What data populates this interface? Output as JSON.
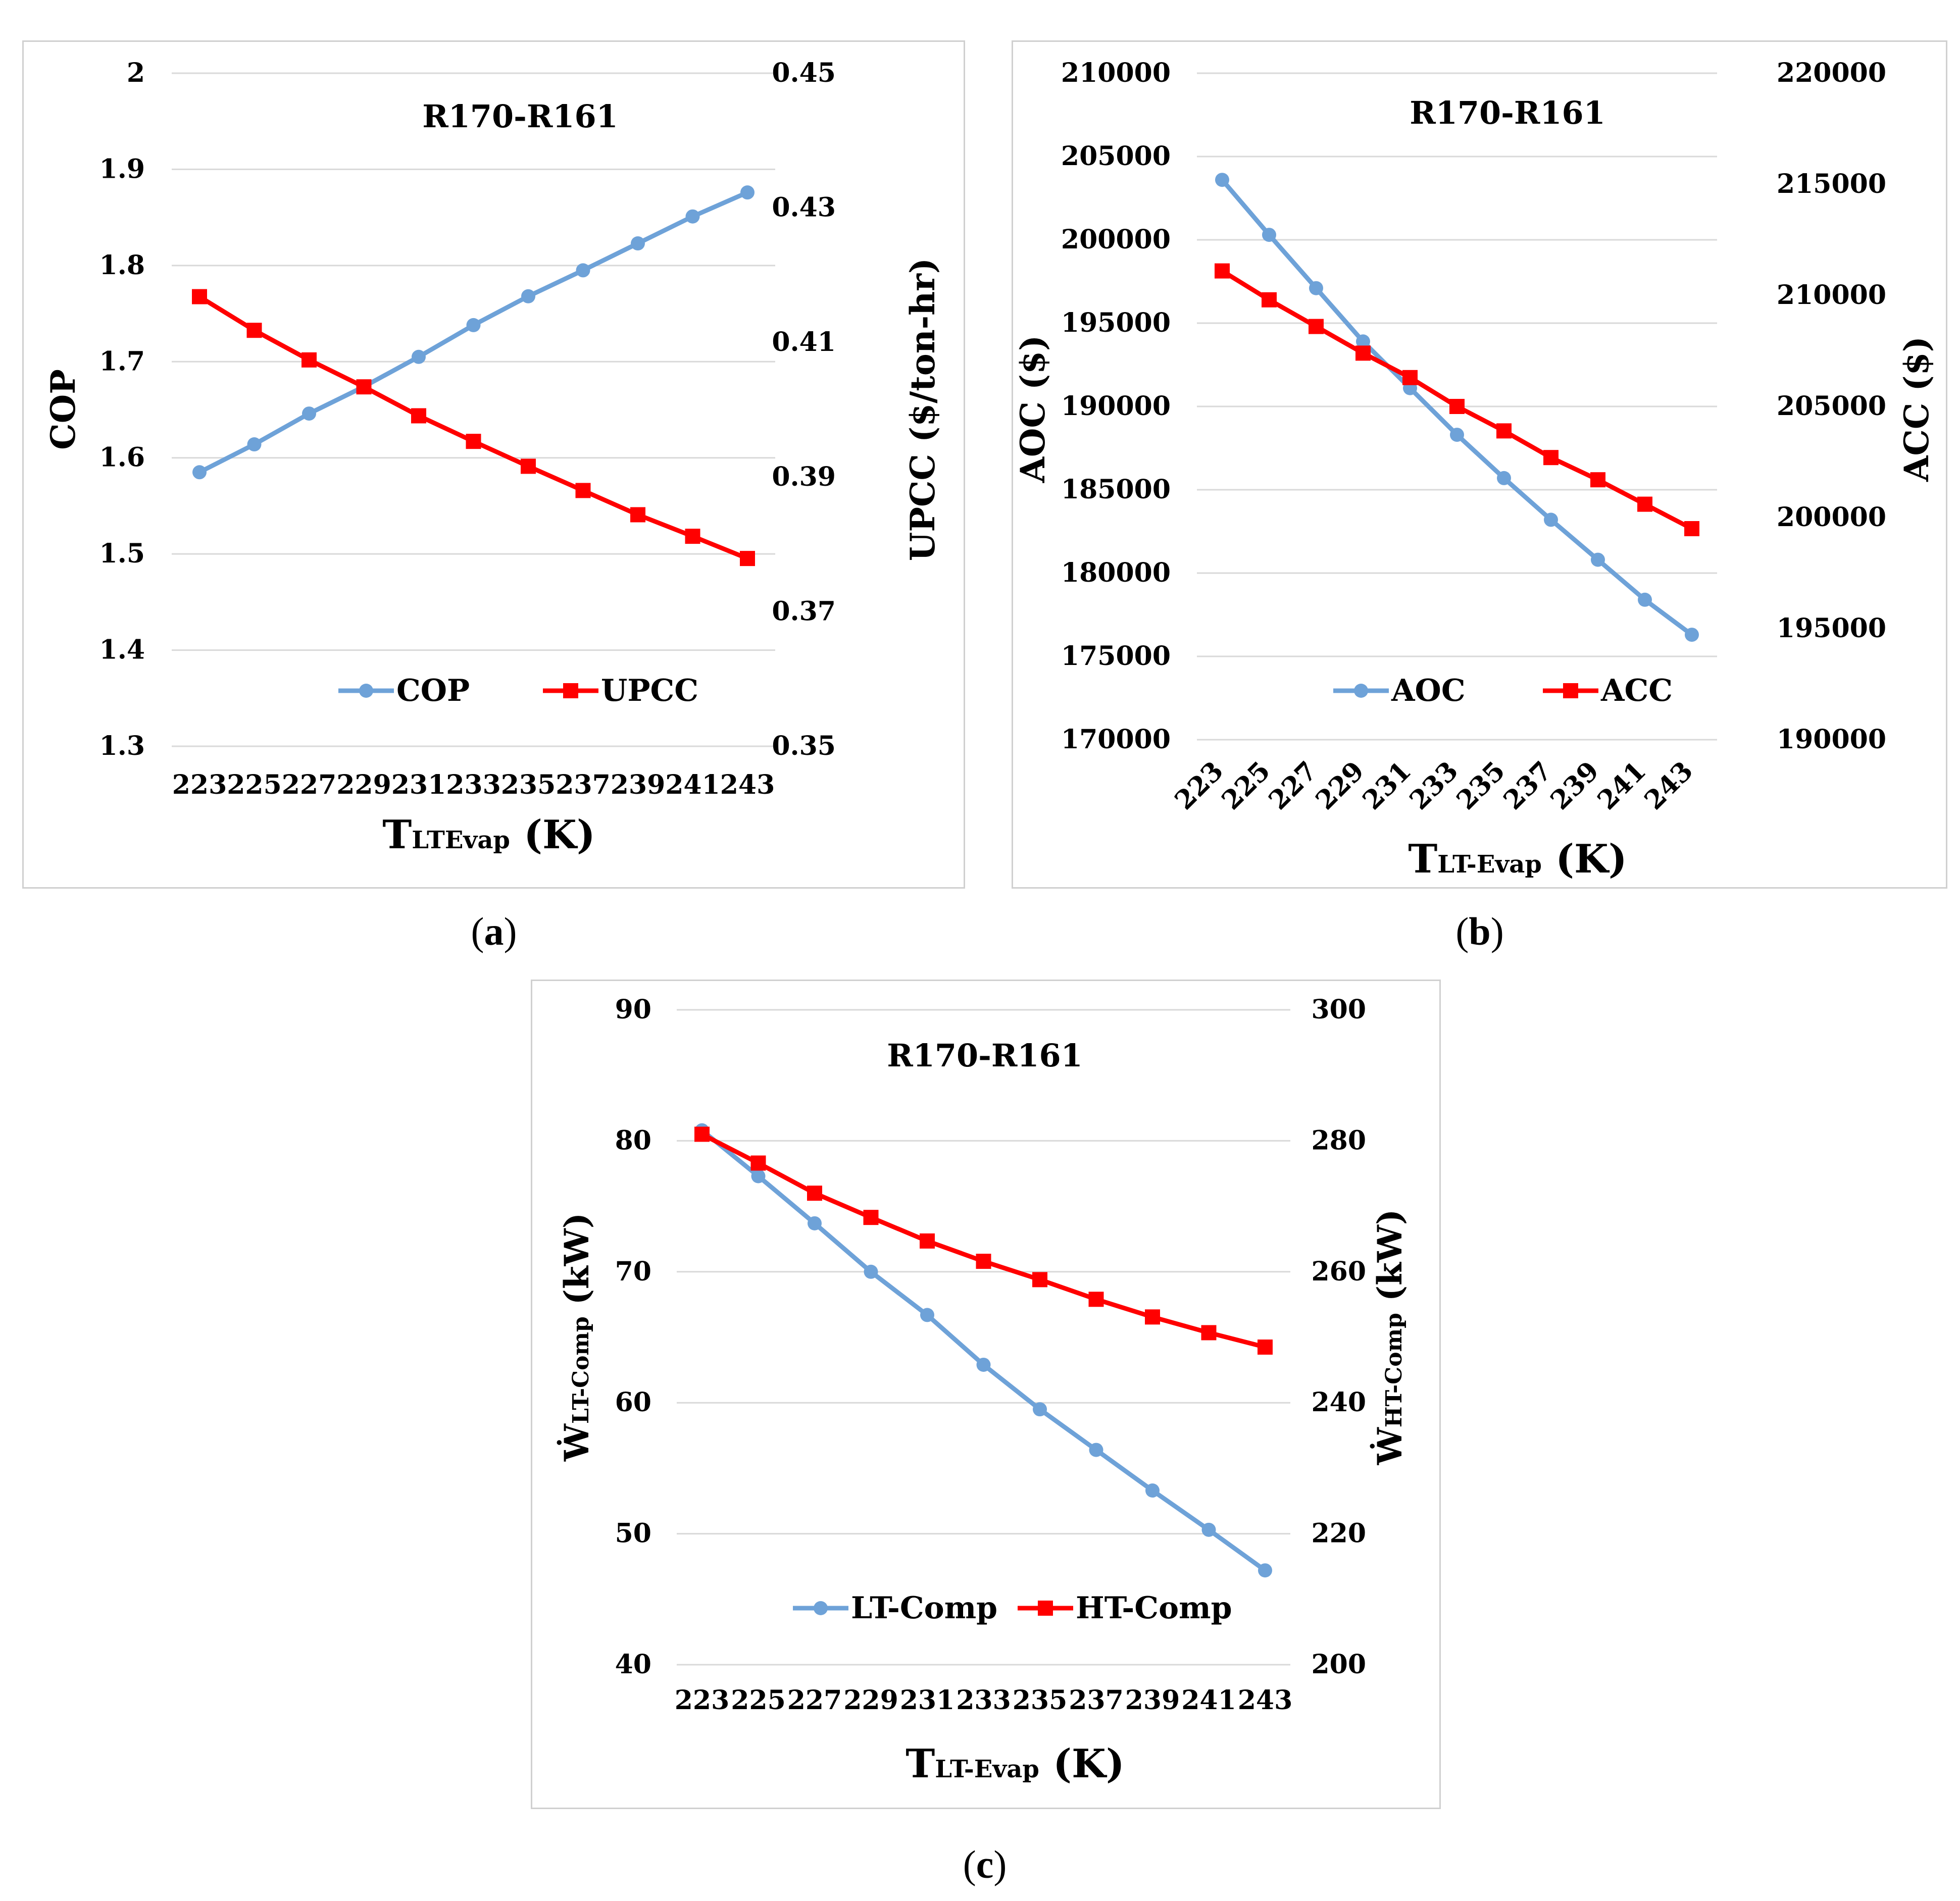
{
  "captions": [
    "a",
    "b",
    "c"
  ],
  "colors": {
    "blue": "#6ea2d8",
    "red": "#ff0000",
    "grid": "#d9d9d9"
  },
  "chart_data": [
    {
      "id": "a",
      "type": "line",
      "title": "R170-R161",
      "x_label_main": "T",
      "x_label_sub": "LTEvap",
      "x_label_tail": " (K)",
      "y_left_label": "COP",
      "y_right_label": "UPCC ($/ton-hr)",
      "categories": [
        "223",
        "225",
        "227",
        "229",
        "231",
        "233",
        "235",
        "237",
        "239",
        "241",
        "243"
      ],
      "ylim_left": [
        1.3,
        2.0
      ],
      "ylim_right": [
        0.35,
        0.45
      ],
      "left_ticks": [
        "1.3",
        "1.4",
        "1.5",
        "1.6",
        "1.7",
        "1.8",
        "1.9",
        "2"
      ],
      "right_ticks": [
        "0.35",
        "0.37",
        "0.39",
        "0.41",
        "0.43",
        "0.45"
      ],
      "legend_position": "bottom-center",
      "series": [
        {
          "name": "COP",
          "axis": "left",
          "marker": "circle",
          "color": "blue",
          "values": [
            1.585,
            1.614,
            1.646,
            1.674,
            1.705,
            1.738,
            1.768,
            1.795,
            1.823,
            1.851,
            1.876
          ]
        },
        {
          "name": "UPCC",
          "axis": "right",
          "marker": "square",
          "color": "red",
          "values": [
            0.4168,
            0.4118,
            0.4074,
            0.4034,
            0.3991,
            0.3953,
            0.3916,
            0.388,
            0.3844,
            0.3812,
            0.3779
          ]
        }
      ]
    },
    {
      "id": "b",
      "type": "line",
      "title": "R170-R161",
      "x_label_main": "T",
      "x_label_sub": "LT-Evap",
      "x_label_tail": " (K)",
      "x_tick_rotation": -45,
      "y_left_label": "AOC ($)",
      "y_right_label": "ACC ($)",
      "categories": [
        "223",
        "225",
        "227",
        "229",
        "231",
        "233",
        "235",
        "237",
        "239",
        "241",
        "243"
      ],
      "ylim_left": [
        170000,
        210000
      ],
      "ylim_right": [
        190000,
        220000
      ],
      "left_ticks": [
        "170000",
        "175000",
        "180000",
        "185000",
        "190000",
        "195000",
        "200000",
        "205000",
        "210000"
      ],
      "right_ticks": [
        "190000",
        "195000",
        "200000",
        "205000",
        "210000",
        "215000",
        "220000"
      ],
      "legend_position": "bottom-center",
      "series": [
        {
          "name": "AOC",
          "axis": "left",
          "marker": "circle",
          "color": "blue",
          "values": [
            203600,
            200300,
            197100,
            193900,
            191100,
            188300,
            185700,
            183200,
            180800,
            178400,
            176300
          ]
        },
        {
          "name": "ACC",
          "axis": "right",
          "marker": "square",
          "color": "red",
          "values": [
            211100,
            209800,
            208600,
            207400,
            206300,
            205000,
            203900,
            202700,
            201700,
            200600,
            199500
          ]
        }
      ]
    },
    {
      "id": "c",
      "type": "line",
      "title": "R170-R161",
      "x_label_main": "T",
      "x_label_sub": "LT-Evap",
      "x_label_tail": " (K)",
      "y_left_label_main": "Ẇ",
      "y_left_label_sub": "LT-Comp",
      "y_left_label_tail": " (kW)",
      "y_right_label_main": "Ẇ",
      "y_right_label_sub": "HT-Comp",
      "y_right_label_tail": " (kW)",
      "categories": [
        "223",
        "225",
        "227",
        "229",
        "231",
        "233",
        "235",
        "237",
        "239",
        "241",
        "243"
      ],
      "ylim_left": [
        40,
        90
      ],
      "ylim_right": [
        200,
        300
      ],
      "left_ticks": [
        "40",
        "50",
        "60",
        "70",
        "80",
        "90"
      ],
      "right_ticks": [
        "200",
        "220",
        "240",
        "260",
        "280",
        "300"
      ],
      "legend_position": "bottom-center",
      "series": [
        {
          "name": "LT-Comp",
          "axis": "left",
          "marker": "circle",
          "color": "blue",
          "values": [
            80.8,
            77.3,
            73.7,
            70.0,
            66.7,
            62.9,
            59.5,
            56.4,
            53.3,
            50.3,
            47.2
          ]
        },
        {
          "name": "HT-Comp",
          "axis": "right",
          "marker": "square",
          "color": "red",
          "values": [
            281.0,
            276.6,
            272.0,
            268.3,
            264.7,
            261.6,
            258.8,
            255.8,
            253.1,
            250.7,
            248.5
          ]
        }
      ]
    }
  ]
}
